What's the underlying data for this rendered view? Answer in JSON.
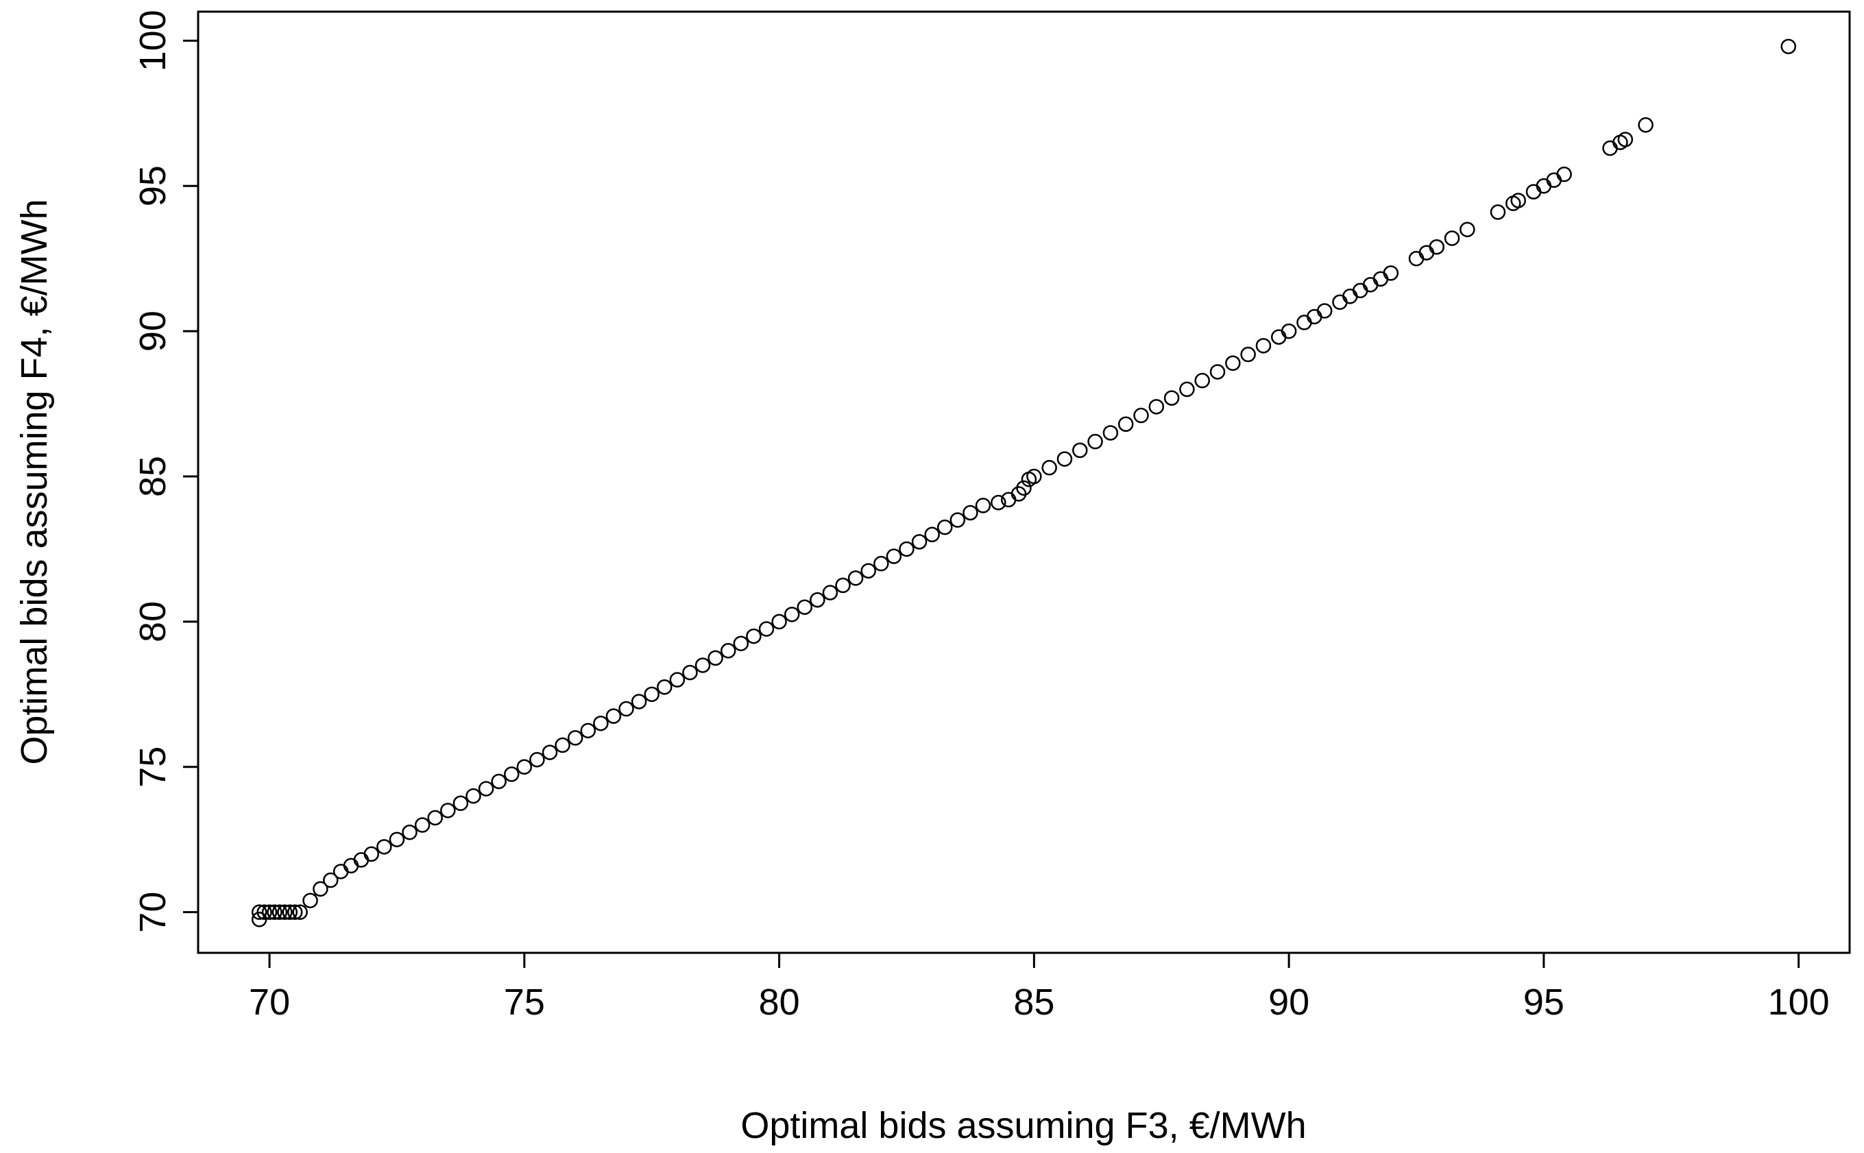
{
  "chart_data": {
    "type": "scatter",
    "xlabel": "Optimal bids assuming F3, €/MWh",
    "ylabel": "Optimal bids assuming F4, €/MWh",
    "color": "#000000",
    "xlim": [
      68.6,
      101.0
    ],
    "ylim": [
      68.6,
      101.0
    ],
    "xticks": [
      70,
      75,
      80,
      85,
      90,
      95,
      100
    ],
    "yticks": [
      70,
      75,
      80,
      85,
      90,
      95,
      100
    ],
    "x": [
      69.8,
      69.8,
      69.9,
      70.0,
      70.1,
      70.2,
      70.3,
      70.4,
      70.5,
      70.6,
      70.8,
      71.0,
      71.2,
      71.4,
      71.6,
      71.8,
      72.0,
      72.25,
      72.5,
      72.75,
      73.0,
      73.25,
      73.5,
      73.75,
      74.0,
      74.25,
      74.5,
      74.75,
      75.0,
      75.25,
      75.5,
      75.75,
      76.0,
      76.25,
      76.5,
      76.75,
      77.0,
      77.25,
      77.5,
      77.75,
      78.0,
      78.25,
      78.5,
      78.75,
      79.0,
      79.25,
      79.5,
      79.75,
      80.0,
      80.25,
      80.5,
      80.75,
      81.0,
      81.25,
      81.5,
      81.75,
      82.0,
      82.25,
      82.5,
      82.75,
      83.0,
      83.25,
      83.5,
      83.75,
      84.0,
      84.3,
      84.5,
      84.7,
      84.8,
      84.9,
      85.0,
      85.3,
      85.6,
      85.9,
      86.2,
      86.5,
      86.8,
      87.1,
      87.4,
      87.7,
      88.0,
      88.3,
      88.6,
      88.9,
      89.2,
      89.5,
      89.8,
      90.0,
      90.3,
      90.5,
      90.7,
      91.0,
      91.2,
      91.4,
      91.6,
      91.8,
      92.0,
      92.5,
      92.7,
      92.9,
      93.2,
      93.5,
      94.1,
      94.4,
      94.5,
      94.8,
      95.0,
      95.2,
      95.4,
      96.3,
      96.5,
      96.6,
      97.0,
      99.8
    ],
    "y": [
      70.0,
      69.75,
      70.0,
      70.0,
      70.0,
      70.0,
      70.0,
      70.0,
      70.0,
      70.0,
      70.4,
      70.8,
      71.1,
      71.4,
      71.6,
      71.8,
      72.0,
      72.25,
      72.5,
      72.75,
      73.0,
      73.25,
      73.5,
      73.75,
      74.0,
      74.25,
      74.5,
      74.75,
      75.0,
      75.25,
      75.5,
      75.75,
      76.0,
      76.25,
      76.5,
      76.75,
      77.0,
      77.25,
      77.5,
      77.75,
      78.0,
      78.25,
      78.5,
      78.75,
      79.0,
      79.25,
      79.5,
      79.75,
      80.0,
      80.25,
      80.5,
      80.75,
      81.0,
      81.25,
      81.5,
      81.75,
      82.0,
      82.25,
      82.5,
      82.75,
      83.0,
      83.25,
      83.5,
      83.75,
      84.0,
      84.1,
      84.2,
      84.4,
      84.6,
      84.9,
      85.0,
      85.3,
      85.6,
      85.9,
      86.2,
      86.5,
      86.8,
      87.1,
      87.4,
      87.7,
      88.0,
      88.3,
      88.6,
      88.9,
      89.2,
      89.5,
      89.8,
      90.0,
      90.3,
      90.5,
      90.7,
      91.0,
      91.2,
      91.4,
      91.6,
      91.8,
      92.0,
      92.5,
      92.7,
      92.9,
      93.2,
      93.5,
      94.1,
      94.4,
      94.5,
      94.8,
      95.0,
      95.2,
      95.4,
      96.3,
      96.5,
      96.6,
      97.1,
      99.8
    ]
  }
}
